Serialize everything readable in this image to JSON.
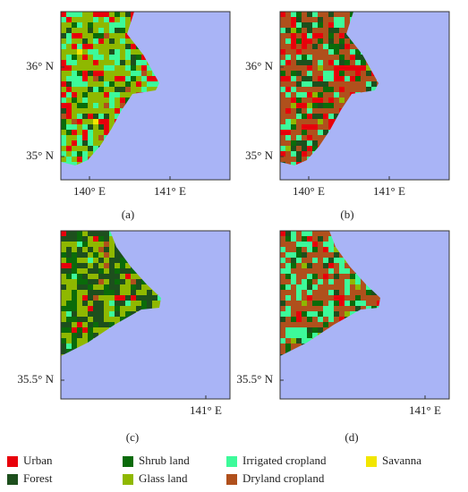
{
  "panels": [
    {
      "caption": "(a)",
      "left_labels": [
        "36° N",
        "35° N"
      ],
      "bottom_labels": [
        "140° E",
        "141° E"
      ]
    },
    {
      "caption": "(b)",
      "left_labels": [
        "36° N",
        "35° N"
      ],
      "bottom_labels": [
        "140° E",
        "141° E"
      ]
    },
    {
      "caption": "(c)",
      "left_labels": [
        "35.5° N"
      ],
      "bottom_labels": [
        "141° E"
      ]
    },
    {
      "caption": "(d)",
      "left_labels": [
        "35.5° N"
      ],
      "bottom_labels": [
        "141° E"
      ]
    }
  ],
  "legend": [
    {
      "label": "Urban",
      "color": "#e8000b"
    },
    {
      "label": "Shrub land",
      "color": "#0a6b0a"
    },
    {
      "label": "Irrigated cropland",
      "color": "#3dfa9a"
    },
    {
      "label": "Savanna",
      "color": "#f2e600"
    },
    {
      "label": "Forest",
      "color": "#1d4f1d"
    },
    {
      "label": "Glass land",
      "color": "#8fb800"
    },
    {
      "label": "Dryland cropland",
      "color": "#b0501c"
    }
  ]
}
